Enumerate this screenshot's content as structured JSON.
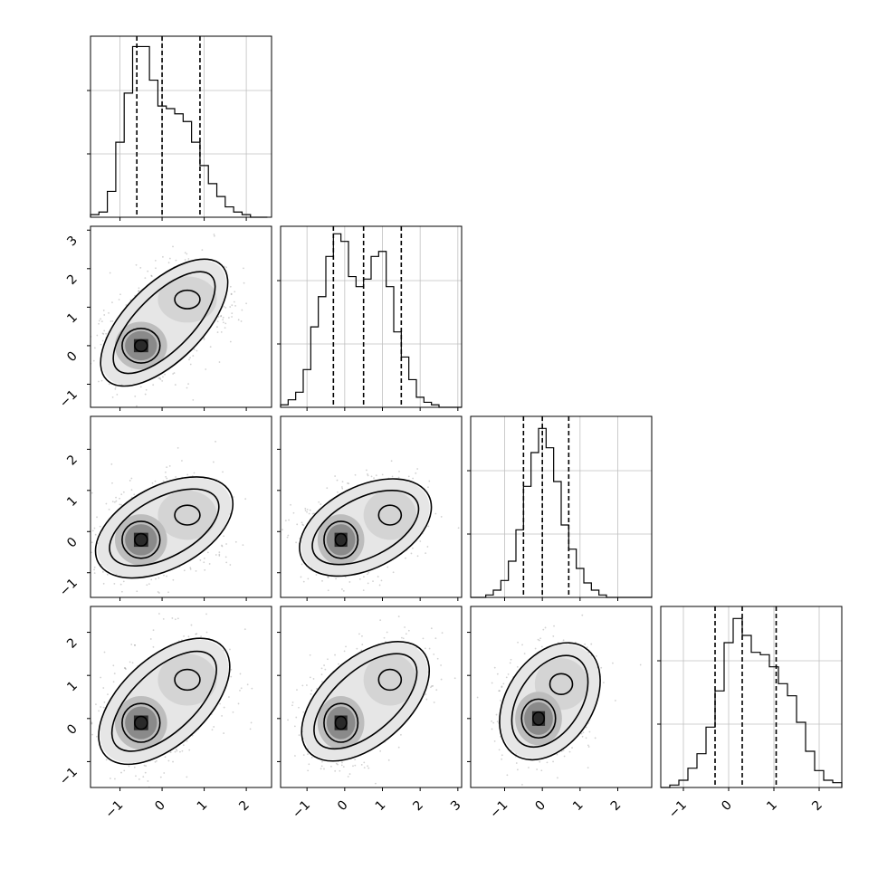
{
  "chart_data": {
    "type": "corner",
    "dimensions": 4,
    "grid": true,
    "xlim": [
      [
        -1.7,
        2.6
      ],
      [
        -1.7,
        3.1
      ],
      [
        -1.9,
        2.9
      ],
      [
        -1.5,
        2.5
      ]
    ],
    "ylim": [
      [
        -1.6,
        3.1
      ],
      [
        -1.6,
        2.8
      ],
      [
        -1.6,
        2.6
      ]
    ],
    "tick_labels": {
      "bottom_row": [
        [
          "-1",
          "0",
          "1",
          "2"
        ],
        [
          "-1",
          "0",
          "1",
          "2",
          "3"
        ],
        [
          "-1",
          "0",
          "1",
          "2"
        ],
        [
          "-1",
          "0",
          "1",
          "2"
        ]
      ],
      "left_column": [
        [
          "-1",
          "0",
          "1",
          "2",
          "3"
        ],
        [
          "-1",
          "0",
          "1",
          "2"
        ],
        [
          "-1",
          "0",
          "1",
          "2"
        ]
      ]
    },
    "histograms": [
      {
        "dim": 0,
        "bins_start": -1.7,
        "bin_width": 0.2,
        "counts": [
          1,
          2,
          10,
          29,
          48,
          66,
          66,
          53,
          43,
          42,
          40,
          37,
          29,
          20,
          13,
          8,
          4,
          2,
          1,
          0,
          0
        ],
        "quantiles": [
          -0.6,
          0.0,
          0.9
        ],
        "ylim": [
          0,
          70
        ]
      },
      {
        "dim": 1,
        "bins_start": -1.7,
        "bin_width": 0.2,
        "counts": [
          1,
          3,
          6,
          15,
          32,
          44,
          60,
          69,
          66,
          52,
          48,
          51,
          60,
          62,
          48,
          30,
          20,
          11,
          4,
          2,
          1,
          0,
          0,
          0
        ],
        "quantiles": [
          -0.3,
          0.5,
          1.5
        ],
        "ylim": [
          0,
          72
        ]
      },
      {
        "dim": 2,
        "bins_start": -1.9,
        "bin_width": 0.2,
        "counts": [
          0,
          0,
          1,
          3,
          7,
          15,
          28,
          46,
          60,
          70,
          62,
          48,
          30,
          20,
          12,
          6,
          3,
          1,
          0,
          0,
          0,
          0,
          0,
          0
        ],
        "quantiles": [
          -0.5,
          0.0,
          0.7
        ],
        "ylim": [
          0,
          75
        ]
      },
      {
        "dim": 3,
        "bins_start": -1.5,
        "bin_width": 0.2,
        "counts": [
          0,
          1,
          3,
          8,
          14,
          25,
          40,
          60,
          70,
          63,
          56,
          55,
          50,
          43,
          38,
          27,
          15,
          7,
          3,
          2,
          0
        ],
        "quantiles": [
          -0.3,
          0.3,
          1.05
        ],
        "ylim": [
          0,
          75
        ]
      }
    ],
    "pairs": [
      {
        "x_dim": 0,
        "y_dim": 1,
        "modes": [
          [
            -0.5,
            0.0
          ],
          [
            0.6,
            1.2
          ]
        ]
      },
      {
        "x_dim": 0,
        "y_dim": 2,
        "modes": [
          [
            -0.5,
            -0.2
          ],
          [
            0.6,
            0.4
          ]
        ]
      },
      {
        "x_dim": 1,
        "y_dim": 2,
        "modes": [
          [
            -0.1,
            -0.2
          ],
          [
            1.2,
            0.4
          ]
        ]
      },
      {
        "x_dim": 0,
        "y_dim": 3,
        "modes": [
          [
            -0.5,
            -0.1
          ],
          [
            0.6,
            0.9
          ]
        ]
      },
      {
        "x_dim": 1,
        "y_dim": 3,
        "modes": [
          [
            -0.1,
            -0.1
          ],
          [
            1.2,
            0.9
          ]
        ]
      },
      {
        "x_dim": 2,
        "y_dim": 3,
        "modes": [
          [
            -0.1,
            0.0
          ],
          [
            0.5,
            0.8
          ]
        ]
      }
    ]
  }
}
